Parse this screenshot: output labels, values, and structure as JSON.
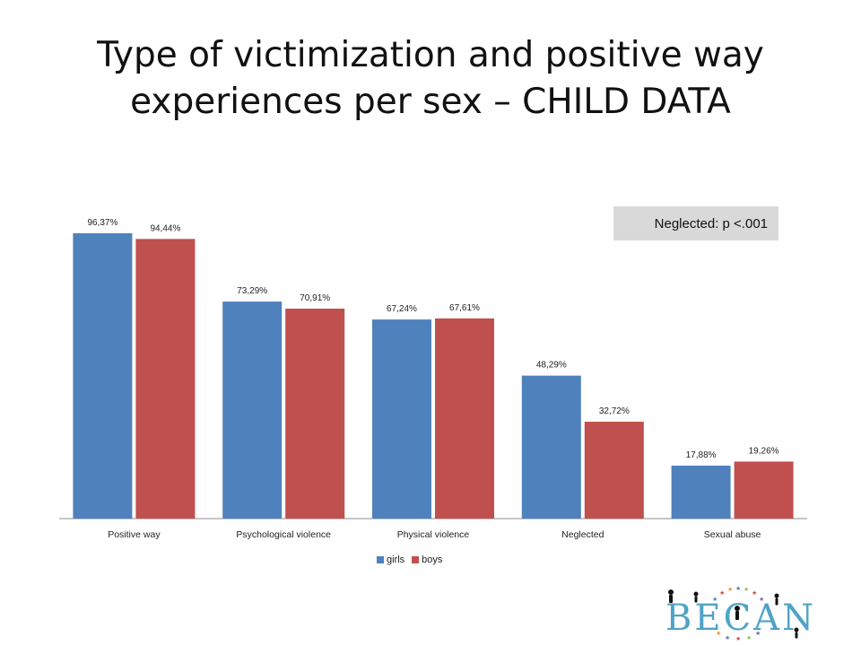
{
  "slide": {
    "title_line1": "Type of victimization and positive way",
    "title_line2": "experiences per sex – CHILD DATA",
    "annotation": "Neglected: p <.001",
    "logo_text": "BECAN"
  },
  "colors": {
    "girls": "#4F81BD",
    "boys": "#C0504D",
    "annotation_bg": "#d9d9d9"
  },
  "chart_data": {
    "type": "bar",
    "categories": [
      "Positive way",
      "Psychological violence",
      "Physical violence",
      "Neglected",
      "Sexual abuse"
    ],
    "series": [
      {
        "name": "girls",
        "values": [
          96.37,
          73.29,
          67.24,
          48.29,
          17.88
        ],
        "labels": [
          "96,37%",
          "73,29%",
          "67,24%",
          "48,29%",
          "17,88%"
        ]
      },
      {
        "name": "boys",
        "values": [
          94.44,
          70.91,
          67.61,
          32.72,
          19.26
        ],
        "labels": [
          "94,44%",
          "70,91%",
          "67,61%",
          "32,72%",
          "19,26%"
        ]
      }
    ],
    "ylim": [
      0,
      100
    ],
    "grid": false,
    "legend": "bottom"
  }
}
